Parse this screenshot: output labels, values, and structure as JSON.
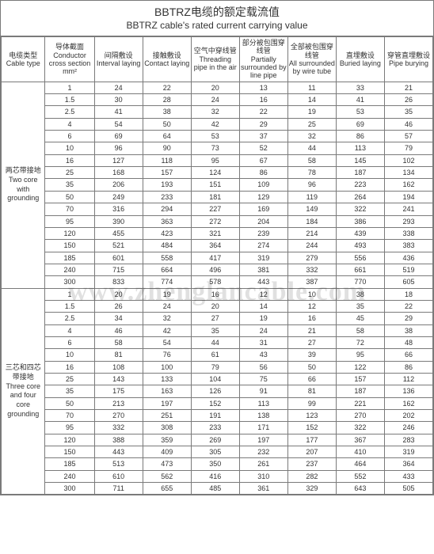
{
  "title_cn": "BBTRZ电缆的额定载流值",
  "title_en": "BBTRZ cable's rated current carrying value",
  "watermark": "www.zhenglancable.com",
  "headers": [
    {
      "cn": "电缆类型",
      "en": "Cable type"
    },
    {
      "cn": "导体截面",
      "en": "Conductor cross section mm²"
    },
    {
      "cn": "间隔敷设",
      "en": "Interval laying"
    },
    {
      "cn": "接触敷设",
      "en": "Contact laying"
    },
    {
      "cn": "空气中穿线管",
      "en": "Threading pipe in the air"
    },
    {
      "cn": "部分被包围穿线管",
      "en": "Partially surrounded by line pipe"
    },
    {
      "cn": "全部被包围穿线管",
      "en": "All surrounded by wire tube"
    },
    {
      "cn": "直埋敷设",
      "en": "Buried laying"
    },
    {
      "cn": "穿管直埋敷设",
      "en": "Pipe burying"
    }
  ],
  "group1": {
    "cn": "两芯带接地",
    "en": "Two core with grounding"
  },
  "group2": {
    "cn": "三芯和四芯带接地",
    "en": "Three core and four core grounding"
  },
  "rows1": [
    [
      "1",
      "24",
      "22",
      "20",
      "13",
      "11",
      "33",
      "21"
    ],
    [
      "1.5",
      "30",
      "28",
      "24",
      "16",
      "14",
      "41",
      "26"
    ],
    [
      "2.5",
      "41",
      "38",
      "32",
      "22",
      "19",
      "53",
      "35"
    ],
    [
      "4",
      "54",
      "50",
      "42",
      "29",
      "25",
      "69",
      "46"
    ],
    [
      "6",
      "69",
      "64",
      "53",
      "37",
      "32",
      "86",
      "57"
    ],
    [
      "10",
      "96",
      "90",
      "73",
      "52",
      "44",
      "113",
      "79"
    ],
    [
      "16",
      "127",
      "118",
      "95",
      "67",
      "58",
      "145",
      "102"
    ],
    [
      "25",
      "168",
      "157",
      "124",
      "86",
      "78",
      "187",
      "134"
    ],
    [
      "35",
      "206",
      "193",
      "151",
      "109",
      "96",
      "223",
      "162"
    ],
    [
      "50",
      "249",
      "233",
      "181",
      "129",
      "119",
      "264",
      "194"
    ],
    [
      "70",
      "316",
      "294",
      "227",
      "169",
      "149",
      "322",
      "241"
    ],
    [
      "95",
      "390",
      "363",
      "272",
      "204",
      "184",
      "386",
      "293"
    ],
    [
      "120",
      "455",
      "423",
      "321",
      "239",
      "214",
      "439",
      "338"
    ],
    [
      "150",
      "521",
      "484",
      "364",
      "274",
      "244",
      "493",
      "383"
    ],
    [
      "185",
      "601",
      "558",
      "417",
      "319",
      "279",
      "556",
      "436"
    ],
    [
      "240",
      "715",
      "664",
      "496",
      "381",
      "332",
      "661",
      "519"
    ],
    [
      "300",
      "833",
      "774",
      "578",
      "443",
      "387",
      "770",
      "605"
    ]
  ],
  "rows2": [
    [
      "1",
      "20",
      "19",
      "16",
      "12",
      "10",
      "38",
      "18"
    ],
    [
      "1.5",
      "26",
      "24",
      "20",
      "14",
      "12",
      "35",
      "22"
    ],
    [
      "2.5",
      "34",
      "32",
      "27",
      "19",
      "16",
      "45",
      "29"
    ],
    [
      "4",
      "46",
      "42",
      "35",
      "24",
      "21",
      "58",
      "38"
    ],
    [
      "6",
      "58",
      "54",
      "44",
      "31",
      "27",
      "72",
      "48"
    ],
    [
      "10",
      "81",
      "76",
      "61",
      "43",
      "39",
      "95",
      "66"
    ],
    [
      "16",
      "108",
      "100",
      "79",
      "56",
      "50",
      "122",
      "86"
    ],
    [
      "25",
      "143",
      "133",
      "104",
      "75",
      "66",
      "157",
      "112"
    ],
    [
      "35",
      "175",
      "163",
      "126",
      "91",
      "81",
      "187",
      "136"
    ],
    [
      "50",
      "213",
      "197",
      "152",
      "113",
      "99",
      "221",
      "162"
    ],
    [
      "70",
      "270",
      "251",
      "191",
      "138",
      "123",
      "270",
      "202"
    ],
    [
      "95",
      "332",
      "308",
      "233",
      "171",
      "152",
      "322",
      "246"
    ],
    [
      "120",
      "388",
      "359",
      "269",
      "197",
      "177",
      "367",
      "283"
    ],
    [
      "150",
      "443",
      "409",
      "305",
      "232",
      "207",
      "410",
      "319"
    ],
    [
      "185",
      "513",
      "473",
      "350",
      "261",
      "237",
      "464",
      "364"
    ],
    [
      "240",
      "610",
      "562",
      "416",
      "310",
      "282",
      "552",
      "433"
    ],
    [
      "300",
      "711",
      "655",
      "485",
      "361",
      "329",
      "643",
      "505"
    ]
  ]
}
